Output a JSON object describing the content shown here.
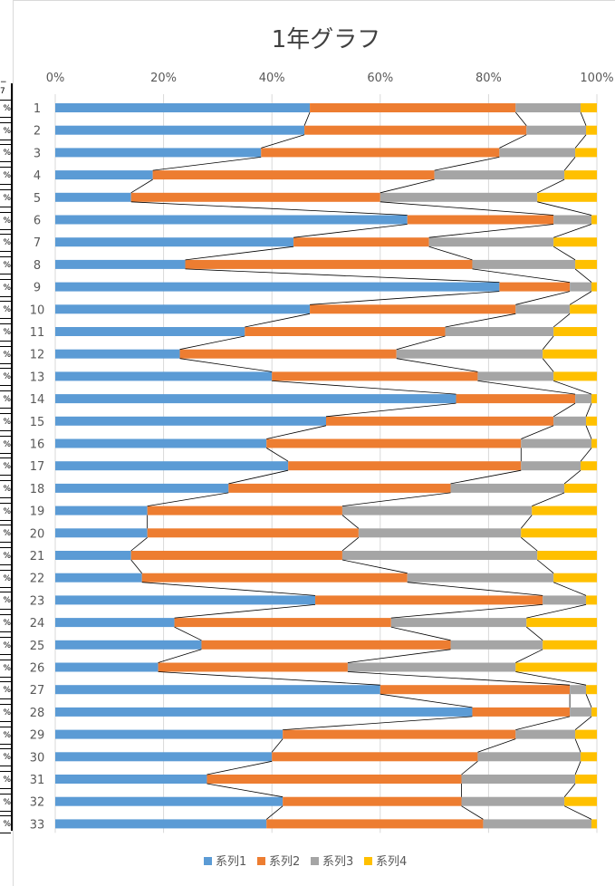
{
  "left_strip": {
    "header": "− 7",
    "cell_text": "%"
  },
  "chart_data": {
    "type": "bar",
    "orientation": "horizontal",
    "stacked": "percent",
    "title": "1年グラフ",
    "xlim": [
      0,
      100
    ],
    "x_ticks": [
      "0%",
      "20%",
      "40%",
      "60%",
      "80%",
      "100%"
    ],
    "categories": [
      "1",
      "2",
      "3",
      "4",
      "5",
      "6",
      "7",
      "8",
      "9",
      "10",
      "11",
      "12",
      "13",
      "14",
      "15",
      "16",
      "17",
      "18",
      "19",
      "20",
      "21",
      "22",
      "23",
      "24",
      "25",
      "26",
      "27",
      "28",
      "29",
      "30",
      "31",
      "32",
      "33"
    ],
    "series_lines": true,
    "colors": {
      "系列1": "#5b9bd5",
      "系列2": "#ed7d31",
      "系列3": "#a5a5a5",
      "系列4": "#ffc000"
    },
    "legend_position": "bottom",
    "series": [
      {
        "name": "系列1",
        "values": [
          47,
          46,
          38,
          18,
          14,
          65,
          44,
          24,
          82,
          47,
          35,
          23,
          40,
          74,
          50,
          39,
          43,
          32,
          17,
          17,
          14,
          16,
          48,
          22,
          27,
          19,
          60,
          77,
          42,
          40,
          28,
          42,
          39
        ]
      },
      {
        "name": "系列2",
        "values": [
          38,
          41,
          44,
          52,
          46,
          27,
          25,
          53,
          13,
          38,
          37,
          40,
          38,
          22,
          42,
          47,
          43,
          41,
          36,
          39,
          39,
          49,
          42,
          40,
          46,
          35,
          35,
          18,
          43,
          38,
          47,
          33,
          40
        ]
      },
      {
        "name": "系列3",
        "values": [
          12,
          11,
          14,
          24,
          29,
          7,
          23,
          19,
          4,
          10,
          20,
          27,
          14,
          3,
          6,
          13,
          11,
          21,
          35,
          30,
          36,
          27,
          8,
          25,
          17,
          31,
          3,
          4,
          11,
          19,
          21,
          19,
          20
        ]
      },
      {
        "name": "系列4",
        "values": [
          3,
          2,
          4,
          6,
          11,
          1,
          8,
          4,
          1,
          5,
          8,
          10,
          8,
          1,
          2,
          1,
          3,
          6,
          12,
          14,
          11,
          8,
          2,
          13,
          10,
          15,
          2,
          1,
          4,
          3,
          4,
          6,
          1
        ]
      }
    ]
  }
}
